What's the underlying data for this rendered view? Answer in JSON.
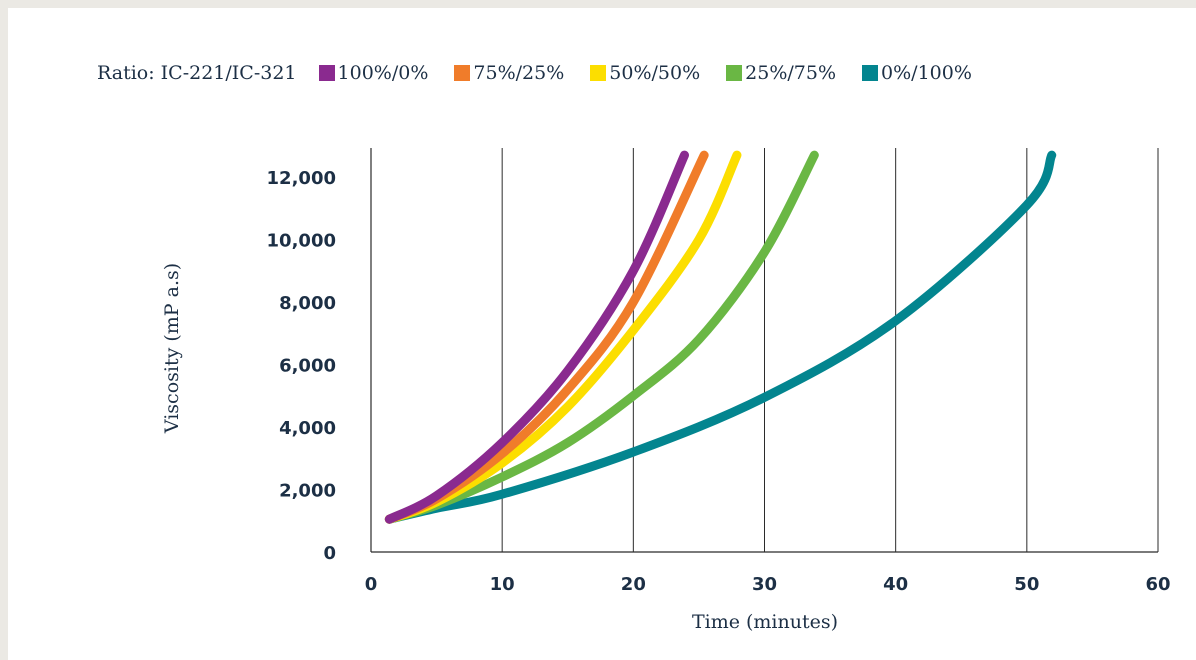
{
  "chart_data": {
    "type": "line",
    "title": "",
    "xlabel": "Time (minutes)",
    "ylabel": "Viscosity (mP a.s)",
    "xlim": [
      0,
      60
    ],
    "ylim": [
      0,
      12000
    ],
    "x_ticks": [
      "0",
      "10",
      "20",
      "30",
      "40",
      "50",
      "60"
    ],
    "y_ticks": [
      "0",
      "2,000",
      "4,000",
      "6,000",
      "8,000",
      "10,000",
      "12,000"
    ],
    "grid": "vertical",
    "legend_title": "Ratio: IC-221/IC-321",
    "legend_position": "top",
    "series": [
      {
        "name": "100%/0%",
        "color": "#8a2a8f",
        "points": [
          [
            1.4,
            1050
          ],
          [
            5,
            1800
          ],
          [
            10,
            3500
          ],
          [
            15,
            5800
          ],
          [
            20,
            9000
          ],
          [
            23.9,
            12700
          ]
        ]
      },
      {
        "name": "75%/25%",
        "color": "#f07c2a",
        "points": [
          [
            1.4,
            1050
          ],
          [
            5,
            1700
          ],
          [
            10,
            3150
          ],
          [
            15,
            5200
          ],
          [
            20,
            8000
          ],
          [
            25.4,
            12700
          ]
        ]
      },
      {
        "name": "50%/50%",
        "color": "#fcde00",
        "points": [
          [
            1.4,
            1050
          ],
          [
            5,
            1600
          ],
          [
            10,
            2850
          ],
          [
            15,
            4650
          ],
          [
            20,
            7100
          ],
          [
            25,
            10000
          ],
          [
            27.9,
            12700
          ]
        ]
      },
      {
        "name": "25%/75%",
        "color": "#6ab744",
        "points": [
          [
            1.4,
            1050
          ],
          [
            5,
            1500
          ],
          [
            10,
            2400
          ],
          [
            15,
            3500
          ],
          [
            20,
            5000
          ],
          [
            25,
            6800
          ],
          [
            30,
            9600
          ],
          [
            33.8,
            12700
          ]
        ]
      },
      {
        "name": "0%/100%",
        "color": "#03858f",
        "points": [
          [
            1.4,
            1050
          ],
          [
            5,
            1400
          ],
          [
            10,
            1850
          ],
          [
            20,
            3200
          ],
          [
            30,
            4950
          ],
          [
            40,
            7400
          ],
          [
            50,
            11100
          ],
          [
            51.9,
            12700
          ]
        ]
      }
    ]
  }
}
